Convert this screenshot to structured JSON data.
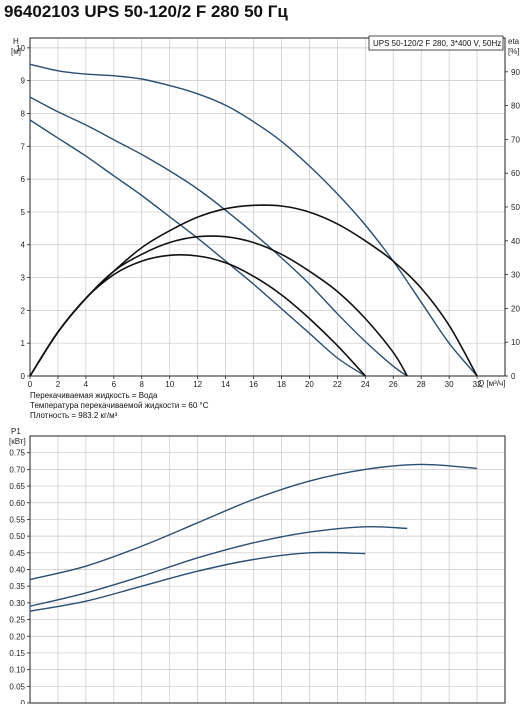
{
  "title": "96402103 UPS 50-120/2 F 280 50 Гц",
  "legend_box": "UPS 50-120/2 F 280, 3*400 V, 50Hz",
  "conditions": [
    "Перекачиваемая жидкость = Вода",
    "Температура перекачиваемой жидкости = 60 °C",
    "Плотность = 983.2 кг/м³"
  ],
  "colors": {
    "curve": "#2a4f72",
    "eta": "#111111",
    "grid": "#c8c8c8",
    "axis": "#222222"
  },
  "chart_data": [
    {
      "type": "line",
      "name": "QH",
      "ylabel": "H",
      "yunit": "[м]",
      "y2label": "eta",
      "y2unit": "[%]",
      "xlabel": "Q [м³/ч]",
      "xlim": [
        0,
        34
      ],
      "ylim": [
        0,
        10.3
      ],
      "y2lim": [
        0,
        100
      ],
      "xticks": [
        0,
        2,
        4,
        6,
        8,
        10,
        12,
        14,
        16,
        18,
        20,
        22,
        24,
        26,
        28,
        30,
        32
      ],
      "yticks": [
        0,
        1,
        2,
        3,
        4,
        5,
        6,
        7,
        8,
        9,
        10
      ],
      "y2ticks": [
        0,
        10,
        20,
        30,
        40,
        50,
        60,
        70,
        80,
        90
      ],
      "grid": true,
      "series": [
        {
          "kind": "head",
          "x": [
            0,
            2,
            4,
            6,
            8,
            10,
            12,
            14,
            16,
            18,
            20,
            22,
            24,
            26,
            28,
            30,
            32
          ],
          "values": [
            9.5,
            9.3,
            9.2,
            9.15,
            9.05,
            8.85,
            8.6,
            8.25,
            7.75,
            7.15,
            6.4,
            5.55,
            4.6,
            3.5,
            2.25,
            1.0,
            0.0
          ]
        },
        {
          "kind": "head",
          "x": [
            0,
            2,
            4,
            6,
            8,
            10,
            12,
            14,
            16,
            18,
            20,
            22,
            24,
            26,
            27
          ],
          "values": [
            8.5,
            8.05,
            7.65,
            7.2,
            6.75,
            6.25,
            5.7,
            5.05,
            4.35,
            3.6,
            2.8,
            1.9,
            1.05,
            0.3,
            0.0
          ]
        },
        {
          "kind": "head",
          "x": [
            0,
            2,
            4,
            6,
            8,
            10,
            12,
            14,
            16,
            18,
            20,
            22,
            24
          ],
          "values": [
            7.8,
            7.25,
            6.7,
            6.1,
            5.5,
            4.85,
            4.2,
            3.5,
            2.8,
            2.05,
            1.3,
            0.55,
            0.0
          ]
        },
        {
          "kind": "eta",
          "x": [
            0,
            2,
            4,
            6,
            8,
            10,
            12,
            14,
            16,
            18,
            20,
            22,
            24,
            26,
            28,
            30,
            32
          ],
          "values": [
            0,
            13,
            23,
            31,
            38,
            43,
            47,
            49.5,
            50.5,
            50.3,
            48.5,
            45,
            40,
            34,
            26,
            15,
            0
          ]
        },
        {
          "kind": "eta",
          "x": [
            0,
            2,
            4,
            6,
            8,
            10,
            12,
            14,
            16,
            18,
            20,
            22,
            24,
            26,
            27
          ],
          "values": [
            0,
            13,
            23,
            31,
            36,
            39.5,
            41.2,
            41.2,
            39.5,
            36,
            31,
            25,
            17,
            7,
            0
          ]
        },
        {
          "kind": "eta",
          "x": [
            0,
            2,
            4,
            6,
            8,
            10,
            12,
            14,
            16,
            18,
            20,
            22,
            24
          ],
          "values": [
            0,
            13,
            23,
            30,
            34,
            35.7,
            35.5,
            33.5,
            29.5,
            24,
            17,
            9,
            0
          ]
        }
      ]
    },
    {
      "type": "line",
      "name": "P1",
      "ylabel": "P1",
      "yunit": "[кВт]",
      "xlim": [
        0,
        34
      ],
      "ylim": [
        0,
        0.8
      ],
      "yticks": [
        0,
        0.05,
        0.1,
        0.15,
        0.2,
        0.25,
        0.3,
        0.35,
        0.4,
        0.45,
        0.5,
        0.55,
        0.6,
        0.65,
        0.7,
        0.75
      ],
      "ytick_labels": [
        "0",
        "0.05",
        "0.10",
        "0.15",
        "0.20",
        "0.25",
        "0.30",
        "0.35",
        "0.40",
        "0.45",
        "0.50",
        "0.55",
        "0.60",
        "0.65",
        "0.70",
        "0.75"
      ],
      "grid": true,
      "series": [
        {
          "x": [
            0,
            4,
            8,
            12,
            16,
            20,
            24,
            28,
            32
          ],
          "values": [
            0.37,
            0.41,
            0.47,
            0.54,
            0.61,
            0.665,
            0.7,
            0.715,
            0.703
          ]
        },
        {
          "x": [
            0,
            4,
            8,
            12,
            16,
            20,
            24,
            27
          ],
          "values": [
            0.29,
            0.33,
            0.38,
            0.435,
            0.48,
            0.512,
            0.528,
            0.523
          ]
        },
        {
          "x": [
            0,
            4,
            8,
            12,
            16,
            20,
            24
          ],
          "values": [
            0.275,
            0.305,
            0.35,
            0.395,
            0.43,
            0.45,
            0.448
          ]
        }
      ]
    }
  ]
}
